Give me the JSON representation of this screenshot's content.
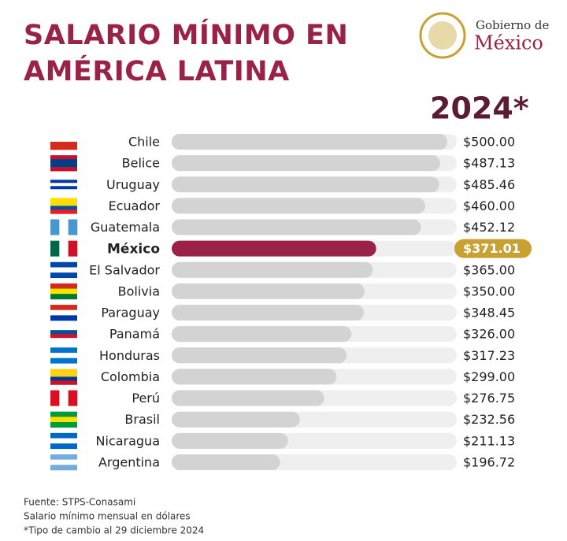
{
  "chart_data": {
    "type": "barh",
    "title": "SALARIO MÍNIMO EN AMÉRICA LATINA",
    "subtitle": "2024*",
    "logo": {
      "line1": "Gobierno de",
      "line2": "México"
    },
    "categories": [
      "Chile",
      "Belice",
      "Uruguay",
      "Ecuador",
      "Guatemala",
      "México",
      "El Salvador",
      "Bolivia",
      "Paraguay",
      "Panamá",
      "Honduras",
      "Colombia",
      "Perú",
      "Brasil",
      "Nicaragua",
      "Argentina"
    ],
    "values": [
      500.0,
      487.13,
      485.46,
      460.0,
      452.12,
      371.01,
      365.0,
      350.0,
      348.45,
      326.0,
      317.23,
      299.0,
      276.75,
      232.56,
      211.13,
      196.72
    ],
    "value_labels": [
      "$500.00",
      "$487.13",
      "$485.46",
      "$460.00",
      "$452.12",
      "$371.01",
      "$365.00",
      "$350.00",
      "$348.45",
      "$326.00",
      "$317.23",
      "$299.00",
      "$276.75",
      "$232.56",
      "$211.13",
      "$196.72"
    ],
    "color": "#d3d3d3",
    "highlight_index": 5,
    "highlight_color": "#9b2247",
    "badge_color": "#c9a132",
    "xlim": [
      0,
      500
    ],
    "notes": [
      "Fuente: STPS-Conasami",
      "Salario mínimo mensual en dólares",
      "*Tipo de cambio al 29 diciembre 2024"
    ]
  }
}
